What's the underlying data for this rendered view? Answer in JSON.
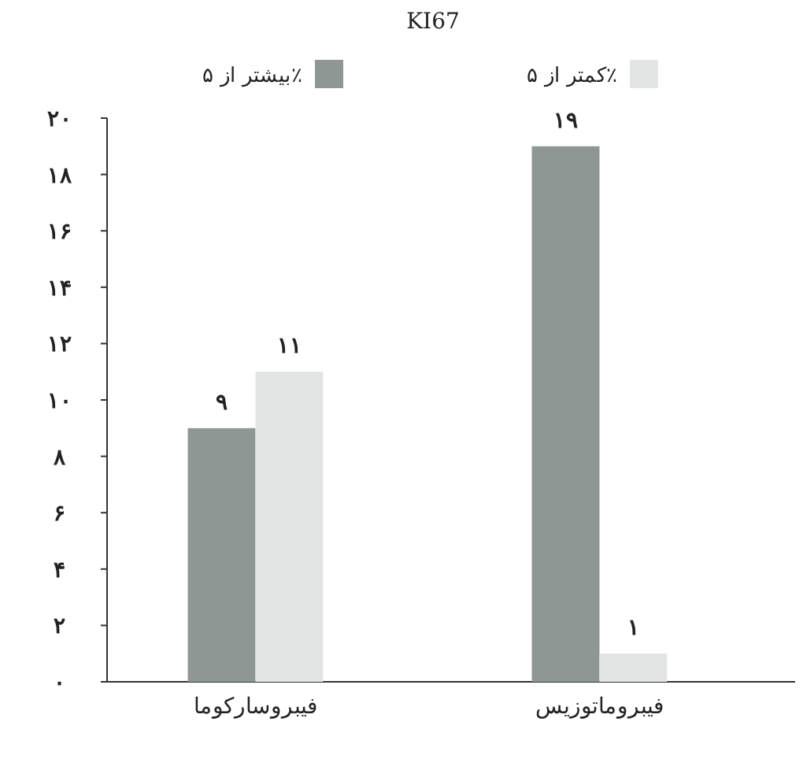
{
  "chart_data": {
    "type": "bar",
    "title": "KI67",
    "categories": [
      "فیبروسارکوما",
      "فیبروماتوزیس"
    ],
    "series": [
      {
        "name": "بیشتر از ۵٪",
        "color": "#8f9794",
        "values": [
          9,
          19
        ],
        "value_labels": [
          "۹",
          "۱۹"
        ]
      },
      {
        "name": "کمتر از ۵٪",
        "color": "#e3e5e4",
        "values": [
          11,
          1
        ],
        "value_labels": [
          "۱۱",
          "۱"
        ]
      }
    ],
    "ylim": [
      0,
      20
    ],
    "yticks": [
      {
        "value": 0,
        "label": "۰"
      },
      {
        "value": 2,
        "label": "۲"
      },
      {
        "value": 4,
        "label": "۴"
      },
      {
        "value": 6,
        "label": "۶"
      },
      {
        "value": 8,
        "label": "۸"
      },
      {
        "value": 10,
        "label": "۱۰"
      },
      {
        "value": 12,
        "label": "۱۲"
      },
      {
        "value": 14,
        "label": "۱۴"
      },
      {
        "value": 16,
        "label": "۱۶"
      },
      {
        "value": 18,
        "label": "۱۸"
      },
      {
        "value": 20,
        "label": "۲۰"
      }
    ],
    "grid": false,
    "legend": "top"
  }
}
